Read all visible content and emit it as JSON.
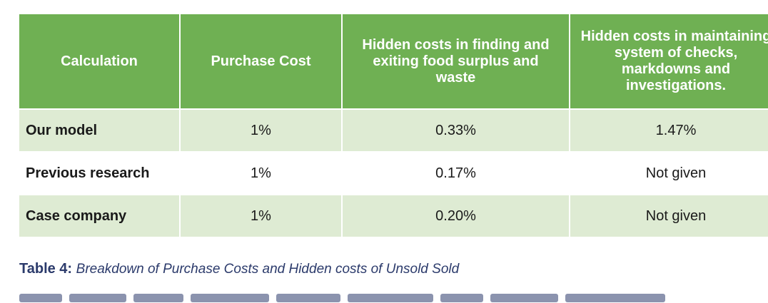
{
  "table": {
    "headers": [
      "Calculation",
      "Purchase Cost",
      "Hidden costs in finding and exiting food surplus and waste",
      "Hidden costs in maintaining system of checks, markdowns and investigations."
    ],
    "rows": [
      {
        "label": "Our model",
        "purchase": "1%",
        "finding": "0.33%",
        "maintaining": "1.47%"
      },
      {
        "label": "Previous research",
        "purchase": "1%",
        "finding": "0.17%",
        "maintaining": "Not given"
      },
      {
        "label": "Case company",
        "purchase": "1%",
        "finding": "0.20%",
        "maintaining": "Not given"
      }
    ]
  },
  "caption": {
    "label": "Table 4:",
    "text": "Breakdown of Purchase Costs and Hidden costs of Unsold Sold"
  },
  "colors": {
    "header_bg": "#6fb053",
    "tinted_row_bg": "#deebd3",
    "caption_color": "#2b3a6b"
  }
}
